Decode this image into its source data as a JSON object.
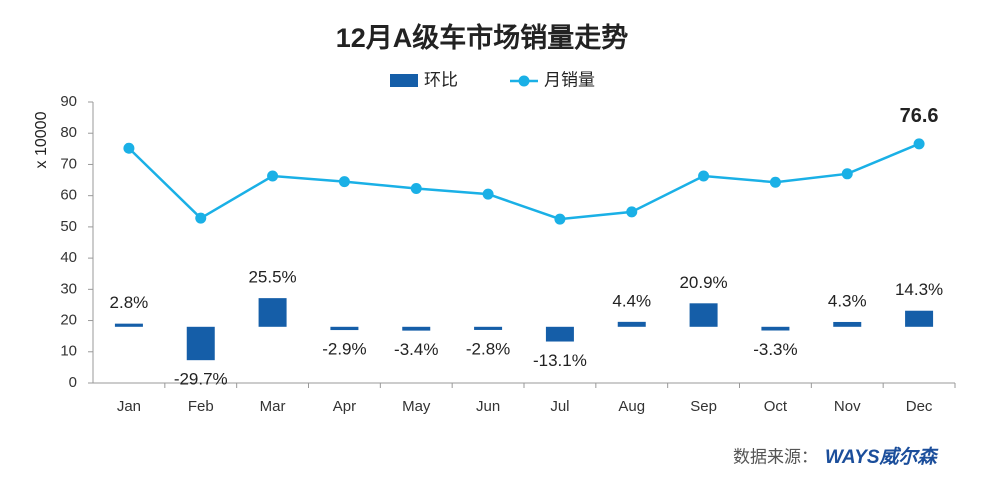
{
  "chart_data": {
    "type": "bar-line",
    "title": "12月A级车市场销量走势",
    "y_label": "x 10000",
    "source": "数据来源：",
    "logo": "WAYS威尔森",
    "categories": [
      "Jan",
      "Feb",
      "Mar",
      "Apr",
      "May",
      "Jun",
      "Jul",
      "Aug",
      "Sep",
      "Oct",
      "Nov",
      "Dec"
    ],
    "series": [
      {
        "name": "环比",
        "type": "bar",
        "axis": "y2",
        "color": "#155ea8",
        "values": [
          2.8,
          -29.7,
          25.5,
          -2.9,
          -3.4,
          -2.8,
          -13.1,
          4.4,
          20.9,
          -3.3,
          4.3,
          14.3
        ],
        "value_labels": [
          "2.8%",
          "-29.7%",
          "25.5%",
          "-2.9%",
          "-3.4%",
          "-2.8%",
          "-13.1%",
          "4.4%",
          "20.9%",
          "-3.3%",
          "4.3%",
          "14.3%"
        ]
      },
      {
        "name": "月销量",
        "type": "line",
        "color": "#1ab0e6",
        "values": [
          75.2,
          52.8,
          66.3,
          64.5,
          62.3,
          60.5,
          52.5,
          54.8,
          66.3,
          64.3,
          67.0,
          76.6
        ]
      }
    ],
    "ylim": [
      0,
      90
    ],
    "yticks": [
      0,
      10,
      20,
      30,
      40,
      50,
      60,
      70,
      80,
      90
    ],
    "y2lim": [
      -50,
      200
    ]
  }
}
